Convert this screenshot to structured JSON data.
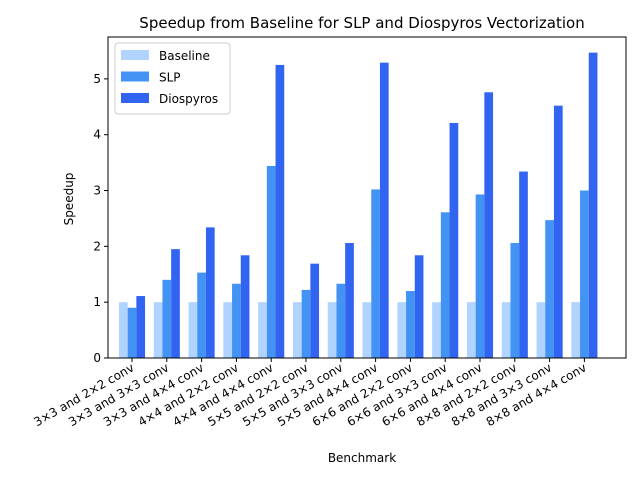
{
  "chart_data": {
    "type": "bar",
    "title": "Speedup from Baseline for SLP and Diospyros Vectorization",
    "xlabel": "Benchmark",
    "ylabel": "Speedup",
    "ylim": [
      0,
      5.75
    ],
    "yticks": [
      0,
      1,
      2,
      3,
      4,
      5
    ],
    "grid": false,
    "legend_position": "top-left",
    "categories": [
      "3×3 and 2×2 conv",
      "3×3 and 3×3 conv",
      "3×3 and 4×4 conv",
      "4×4 and 2×2 conv",
      "4×4 and 4×4 conv",
      "5×5 and 2×2 conv",
      "5×5 and 3×3 conv",
      "5×5 and 4×4 conv",
      "6×6 and 2×2 conv",
      "6×6 and 3×3 conv",
      "6×6 and 4×4 conv",
      "8×8 and 2×2 conv",
      "8×8 and 3×3 conv",
      "8×8 and 4×4 conv"
    ],
    "series": [
      {
        "name": "Baseline",
        "color": "#b0d3ff",
        "values": [
          1,
          1,
          1,
          1,
          1,
          1,
          1,
          1,
          1,
          1,
          1,
          1,
          1,
          1
        ]
      },
      {
        "name": "SLP",
        "color": "#4393f5",
        "values": [
          0.9,
          1.4,
          1.53,
          1.33,
          3.44,
          1.22,
          1.33,
          3.02,
          1.2,
          2.61,
          2.93,
          2.06,
          2.47,
          3.0
        ]
      },
      {
        "name": "Diospyros",
        "color": "#3264f2",
        "values": [
          1.11,
          1.95,
          2.34,
          1.84,
          5.25,
          1.69,
          2.06,
          5.29,
          1.84,
          4.21,
          4.76,
          3.34,
          4.52,
          5.47
        ]
      }
    ]
  }
}
